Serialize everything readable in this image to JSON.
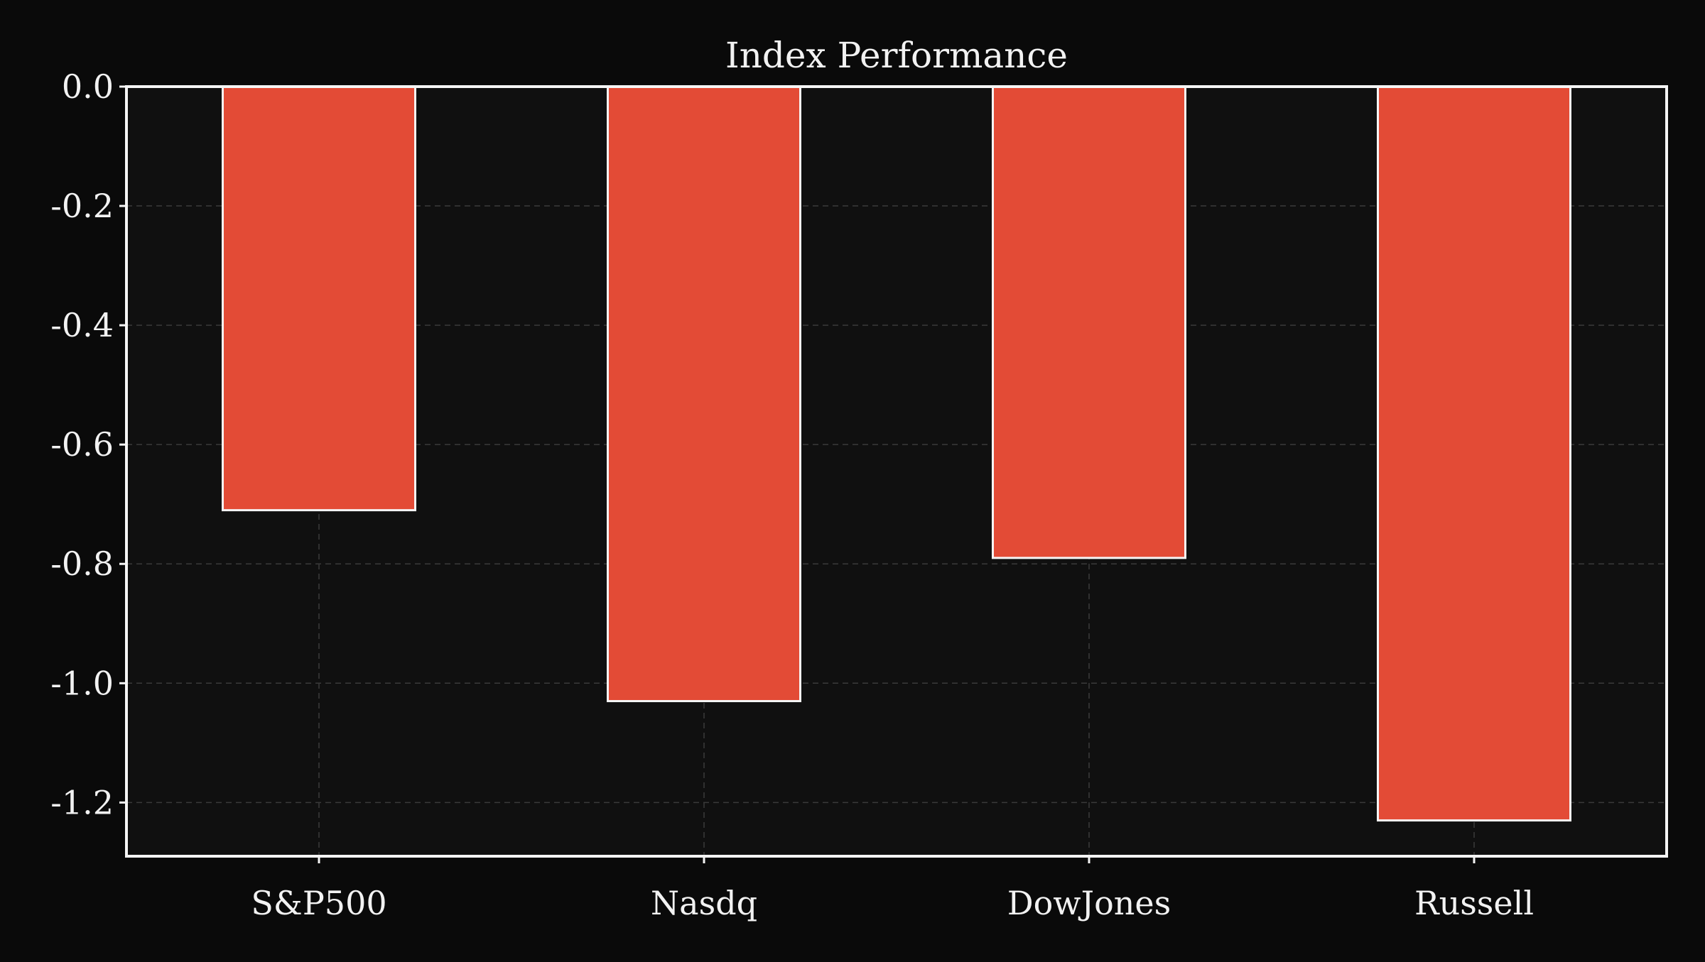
{
  "chart_data": {
    "type": "bar",
    "title": "Index Performance",
    "xlabel": "",
    "ylabel": "",
    "categories": [
      "S&P500",
      "Nasdq",
      "DowJones",
      "Russell"
    ],
    "values": [
      -0.71,
      -1.03,
      -0.79,
      -1.23
    ],
    "ylim": [
      -1.29,
      0.0
    ],
    "yticks": [
      0.0,
      -0.2,
      -0.4,
      -0.6,
      -0.8,
      -1.0,
      -1.2
    ],
    "ytick_labels": [
      "0.0",
      "-0.2",
      "-0.4",
      "-0.6",
      "-0.8",
      "-1.0",
      "-1.2"
    ],
    "grid": true,
    "legend": "none",
    "colors": {
      "bar": "#e34b36",
      "bar_edge": "#f5f5f5",
      "plot_bg": "#101010",
      "page_bg": "#0a0a0a",
      "grid": "#3a3a3a",
      "axes": "#f5f5f5"
    }
  }
}
